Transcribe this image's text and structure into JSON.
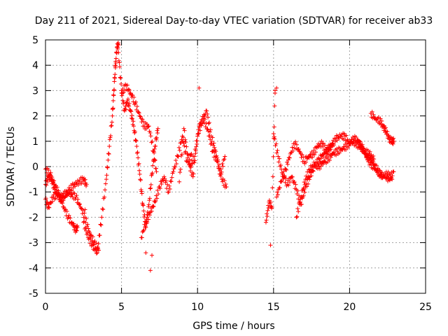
{
  "chart_data": {
    "type": "scatter",
    "title": "Day 211 of 2021, Sidereal Day-to-day VTEC variation (SDTVAR) for receiver ab33",
    "xlabel": "GPS time / hours",
    "ylabel": "SDTVAR / TECUs",
    "xlim": [
      0,
      25
    ],
    "ylim": [
      -5,
      5
    ],
    "xticks": [
      "0",
      "5",
      "10",
      "15",
      "20",
      "25"
    ],
    "yticks": [
      "5",
      "4",
      "3",
      "2",
      "1",
      "0",
      "-1",
      "-2",
      "-3",
      "-4",
      "-5"
    ],
    "grid": true,
    "marker": "+",
    "color": "#ff0000",
    "series": [
      {
        "name": "trace-a",
        "x": [
          0.0,
          0.2,
          0.4,
          0.6,
          0.8,
          1.0,
          1.3,
          1.6,
          1.9,
          2.2,
          2.5,
          2.7
        ],
        "y": [
          -0.7,
          -0.4,
          -0.5,
          -0.9,
          -1.1,
          -1.3,
          -1.2,
          -0.9,
          -0.7,
          -0.6,
          -0.5,
          -0.7
        ]
      },
      {
        "name": "trace-b",
        "x": [
          0.0,
          0.3,
          0.6,
          0.9,
          1.2,
          1.5,
          1.8,
          2.0,
          2.1
        ],
        "y": [
          -0.1,
          -0.3,
          -0.7,
          -1.1,
          -1.6,
          -2.0,
          -2.3,
          -2.5,
          -2.4
        ]
      },
      {
        "name": "trace-c",
        "x": [
          0.0,
          0.2,
          0.5,
          0.8,
          1.1,
          1.4,
          1.7,
          2.0,
          2.3,
          2.6,
          2.9,
          3.2,
          3.5
        ],
        "y": [
          -1.3,
          -1.6,
          -1.2,
          -1.1,
          -1.2,
          -1.0,
          -1.1,
          -1.2,
          -1.6,
          -2.0,
          -2.6,
          -3.0,
          -3.3
        ]
      },
      {
        "name": "trace-d",
        "x": [
          2.5,
          2.8,
          3.1,
          3.4,
          3.7,
          4.0,
          4.2,
          4.4,
          4.5,
          4.6,
          4.7,
          4.8
        ],
        "y": [
          -2.2,
          -2.8,
          -3.1,
          -3.4,
          -2.0,
          -0.5,
          0.8,
          2.0,
          3.0,
          4.0,
          4.7,
          4.8
        ]
      },
      {
        "name": "trace-e",
        "x": [
          4.8,
          5.0,
          5.2,
          5.4,
          5.6,
          5.8,
          6.0,
          6.2,
          6.4,
          6.6,
          6.8,
          7.0,
          7.2,
          7.4
        ],
        "y": [
          4.5,
          3.0,
          2.2,
          2.6,
          2.2,
          1.6,
          0.8,
          -0.3,
          -1.5,
          -2.4,
          -1.5,
          -0.3,
          0.8,
          1.5
        ]
      },
      {
        "name": "trace-f",
        "x": [
          5.0,
          5.3,
          5.6,
          5.9,
          6.2,
          6.5,
          6.8,
          7.1,
          7.3
        ],
        "y": [
          2.9,
          3.2,
          2.9,
          2.5,
          2.0,
          1.6,
          1.6,
          0.6,
          -0.2
        ]
      },
      {
        "name": "trace-g",
        "x": [
          6.3,
          6.6,
          6.9,
          7.2,
          7.5,
          7.8,
          8.1,
          8.4,
          8.7,
          9.0,
          9.3,
          9.6
        ],
        "y": [
          -2.8,
          -2.2,
          -1.8,
          -1.4,
          -0.8,
          -0.4,
          -1.0,
          -0.2,
          0.4,
          1.2,
          0.2,
          0.5
        ]
      },
      {
        "name": "trace-h",
        "x": [
          8.8,
          9.1,
          9.4,
          9.7,
          10.0,
          10.3,
          10.6,
          10.9,
          11.2,
          11.5,
          11.8
        ],
        "y": [
          -0.6,
          1.5,
          0.2,
          -0.4,
          1.2,
          1.8,
          2.2,
          1.2,
          0.6,
          -0.3,
          0.4
        ]
      },
      {
        "name": "trace-i",
        "x": [
          9.5,
          9.8,
          10.1,
          10.4,
          10.7,
          11.0,
          11.3,
          11.6,
          11.9
        ],
        "y": [
          0.0,
          0.4,
          1.6,
          1.9,
          1.4,
          0.6,
          0.2,
          -0.5,
          -0.8
        ]
      },
      {
        "name": "trace-j",
        "x": [
          14.5,
          14.7,
          14.9,
          15.1
        ],
        "y": [
          -2.2,
          -1.4,
          -1.6,
          3.0
        ]
      },
      {
        "name": "trace-k",
        "x": [
          15.0,
          15.3,
          15.6,
          15.9,
          16.2,
          16.5,
          16.8,
          17.1,
          17.4,
          17.7,
          18.0,
          18.3,
          18.6,
          18.9
        ],
        "y": [
          1.3,
          0.4,
          -0.3,
          -0.7,
          -0.4,
          -0.9,
          -1.5,
          -0.8,
          -0.4,
          0.0,
          0.3,
          0.5,
          0.7,
          0.9
        ]
      },
      {
        "name": "trace-l",
        "x": [
          15.2,
          15.5,
          15.8,
          16.1,
          16.4,
          16.7,
          17.0,
          17.3,
          17.6,
          17.9,
          18.2,
          18.5,
          18.8,
          19.1,
          19.4,
          19.7,
          20.0,
          20.3,
          20.6,
          20.9
        ],
        "y": [
          -1.2,
          -0.6,
          -0.1,
          0.5,
          0.9,
          0.6,
          0.2,
          0.4,
          0.5,
          0.8,
          0.9,
          0.6,
          0.8,
          1.1,
          1.2,
          1.2,
          0.9,
          1.1,
          1.0,
          0.6
        ]
      },
      {
        "name": "trace-m",
        "x": [
          16.5,
          16.8,
          17.1,
          17.4,
          17.7,
          18.0,
          18.3,
          18.6,
          18.9,
          19.2,
          19.5,
          19.8,
          20.1,
          20.4,
          20.7,
          21.0,
          21.3,
          21.6
        ],
        "y": [
          -2.0,
          -1.2,
          -0.5,
          -0.1,
          0.1,
          0.0,
          0.2,
          0.3,
          0.5,
          0.6,
          0.7,
          0.8,
          1.0,
          0.9,
          0.8,
          0.6,
          0.5,
          0.3
        ]
      },
      {
        "name": "trace-n",
        "x": [
          20.5,
          20.8,
          21.1,
          21.4,
          21.7,
          22.0,
          22.3,
          22.6,
          22.9
        ],
        "y": [
          1.0,
          0.8,
          0.4,
          0.1,
          -0.1,
          -0.3,
          -0.4,
          -0.5,
          -0.2
        ]
      },
      {
        "name": "trace-o",
        "x": [
          21.4,
          21.7,
          22.0,
          22.2,
          22.4,
          22.6,
          22.8,
          22.9
        ],
        "y": [
          2.1,
          1.9,
          1.8,
          1.6,
          1.4,
          1.1,
          1.0,
          1.0
        ]
      },
      {
        "name": "trace-p",
        "x": [
          21.0,
          21.3,
          21.6,
          21.9,
          22.2,
          22.5,
          22.8
        ],
        "y": [
          0.5,
          0.3,
          0.1,
          -0.2,
          -0.4,
          -0.3,
          -0.5
        ]
      }
    ],
    "outliers": {
      "x": [
        4.6,
        6.9,
        7.0,
        10.1,
        15.2,
        14.8,
        2.6,
        0.2,
        6.6,
        15.1
      ],
      "y": [
        3.9,
        -4.1,
        -3.5,
        3.1,
        3.1,
        -3.1,
        -1.7,
        -1.5,
        -3.4,
        2.9
      ]
    }
  }
}
